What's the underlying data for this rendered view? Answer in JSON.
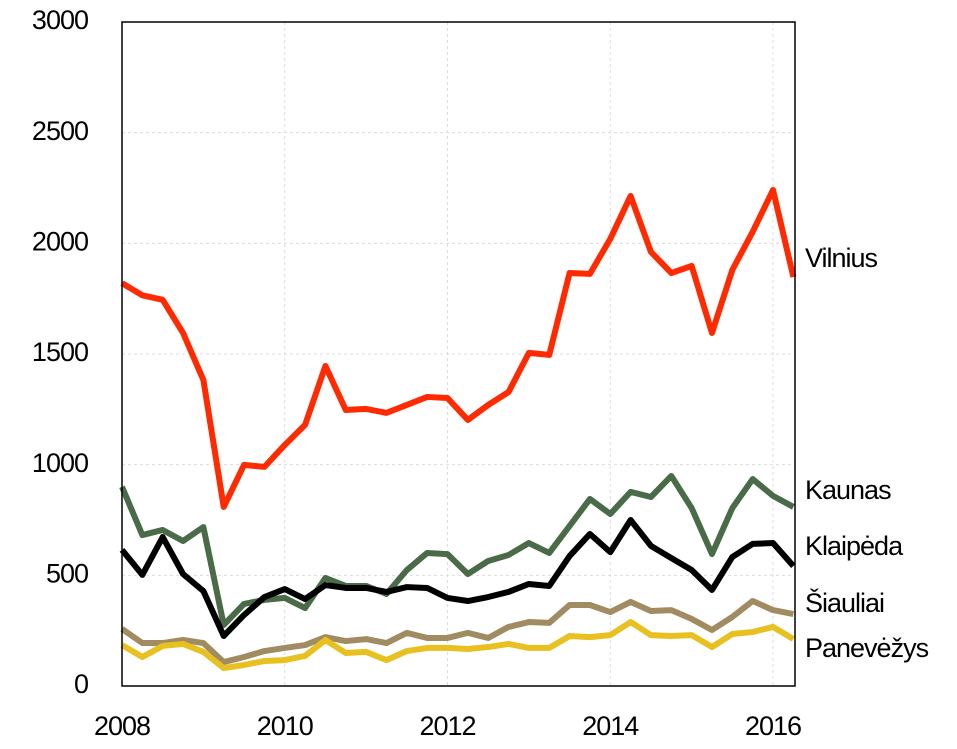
{
  "chart_data": {
    "type": "line",
    "x": [
      2008,
      2008.25,
      2008.5,
      2008.75,
      2009,
      2009.25,
      2009.5,
      2009.75,
      2010,
      2010.25,
      2010.5,
      2010.75,
      2011,
      2011.25,
      2011.5,
      2011.75,
      2012,
      2012.25,
      2012.5,
      2012.75,
      2013,
      2013.25,
      2013.5,
      2013.75,
      2014,
      2014.25,
      2014.5,
      2014.75,
      2015,
      2015.25,
      2015.5,
      2015.75,
      2016,
      2016.25
    ],
    "series": [
      {
        "name": "Vilnius",
        "color": "#ff2a00",
        "values": [
          1820,
          1765,
          1745,
          1595,
          1383,
          809,
          999,
          990,
          1089,
          1180,
          1446,
          1247,
          1252,
          1234,
          1270,
          1306,
          1301,
          1202,
          1270,
          1328,
          1505,
          1496,
          1866,
          1862,
          2020,
          2214,
          1961,
          1866,
          1898,
          1595,
          1880,
          2052,
          2241,
          1848
        ]
      },
      {
        "name": "Kaunas",
        "color": "#4a6b48",
        "values": [
          900,
          682,
          705,
          655,
          718,
          276,
          371,
          389,
          398,
          352,
          488,
          452,
          452,
          416,
          524,
          601,
          596,
          506,
          565,
          592,
          646,
          601,
          723,
          845,
          777,
          877,
          854,
          949,
          804,
          596,
          804,
          935,
          859,
          809
        ]
      },
      {
        "name": "Klaipėda",
        "color": "#000000",
        "values": [
          615,
          502,
          673,
          506,
          429,
          226,
          321,
          402,
          438,
          393,
          456,
          443,
          443,
          425,
          447,
          443,
          398,
          384,
          402,
          425,
          461,
          452,
          587,
          687,
          605,
          750,
          633,
          578,
          524,
          434,
          583,
          642,
          646,
          542
        ]
      },
      {
        "name": "Šiauliai",
        "color": "#a08c60",
        "values": [
          258,
          194,
          194,
          208,
          194,
          108,
          131,
          158,
          172,
          185,
          221,
          203,
          212,
          194,
          240,
          217,
          217,
          240,
          217,
          267,
          289,
          285,
          366,
          366,
          334,
          380,
          339,
          343,
          303,
          253,
          312,
          384,
          343,
          325
        ]
      },
      {
        "name": "Panevėžys",
        "color": "#e8c020",
        "values": [
          185,
          131,
          181,
          190,
          154,
          81,
          95,
          113,
          117,
          136,
          208,
          149,
          154,
          117,
          158,
          172,
          172,
          167,
          176,
          190,
          172,
          172,
          226,
          221,
          230,
          289,
          230,
          226,
          230,
          176,
          235,
          244,
          267,
          212
        ]
      }
    ],
    "xlim": [
      2008,
      2016.27
    ],
    "xticks": [
      2008,
      2010,
      2012,
      2014,
      2016
    ],
    "ylim": [
      0,
      3000
    ],
    "yticks": [
      0,
      500,
      1000,
      1500,
      2000,
      2500,
      3000
    ],
    "grid": true
  }
}
